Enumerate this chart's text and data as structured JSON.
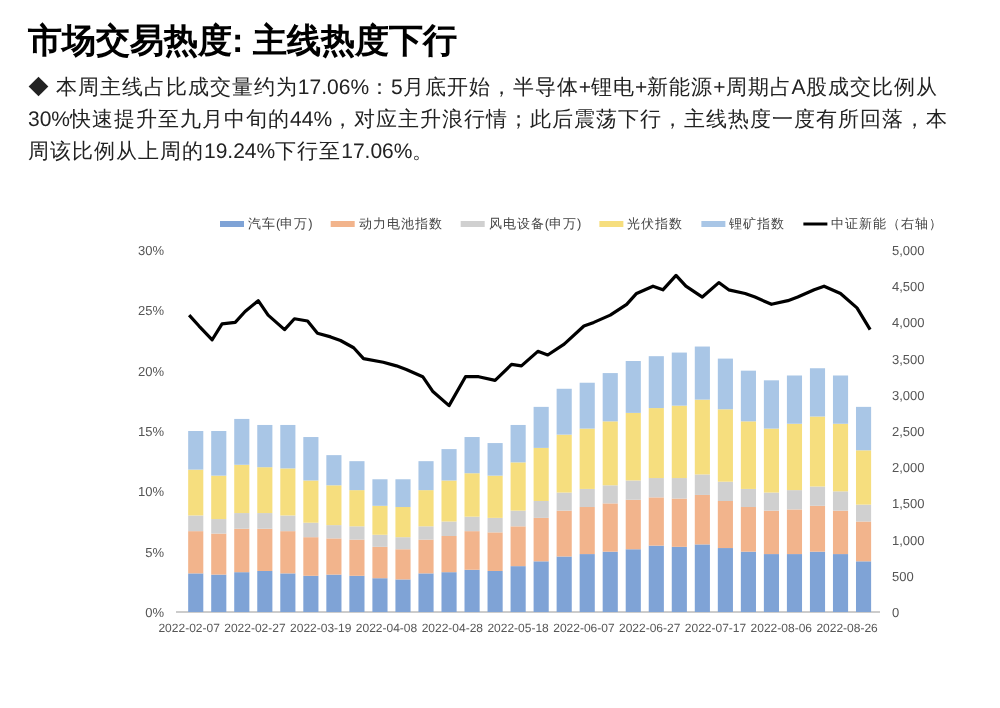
{
  "chart_data": {
    "type": "bar",
    "stacked": true,
    "title": "市场交易热度: 主线热度下行",
    "subtitle": "◆ 本周主线占比成交量约为17.06%：5月底开始，半导体+锂电+新能源+周期占A股成交比例从30%快速提升至九月中旬的44%，对应主升浪行情；此后震荡下行，主线热度一度有所回落，本周该比例从上周的19.24%下行至17.06%。",
    "x": [
      "2022-02-09",
      "2022-02-16",
      "2022-02-23",
      "2022-03-02",
      "2022-03-09",
      "2022-03-16",
      "2022-03-23",
      "2022-03-30",
      "2022-04-06",
      "2022-04-13",
      "2022-04-20",
      "2022-04-27",
      "2022-05-04",
      "2022-05-11",
      "2022-05-18",
      "2022-05-25",
      "2022-06-01",
      "2022-06-08",
      "2022-06-15",
      "2022-06-22",
      "2022-06-29",
      "2022-07-06",
      "2022-07-13",
      "2022-07-20",
      "2022-07-27",
      "2022-08-03",
      "2022-08-10",
      "2022-08-17",
      "2022-08-24",
      "2022-08-31"
    ],
    "series": [
      {
        "name": "汽车(申万)",
        "color": "#7fa3d6",
        "values": [
          3.2,
          3.1,
          3.3,
          3.4,
          3.2,
          3.0,
          3.1,
          3.0,
          2.8,
          2.7,
          3.2,
          3.3,
          3.5,
          3.4,
          3.8,
          4.2,
          4.6,
          4.8,
          5.0,
          5.2,
          5.5,
          5.4,
          5.6,
          5.3,
          5.0,
          4.8,
          4.8,
          5.0,
          4.8,
          4.2
        ]
      },
      {
        "name": "动力电池指数",
        "color": "#f2b48c",
        "values": [
          3.5,
          3.4,
          3.6,
          3.5,
          3.5,
          3.2,
          3.0,
          3.0,
          2.6,
          2.5,
          2.8,
          3.0,
          3.2,
          3.2,
          3.3,
          3.6,
          3.8,
          3.9,
          4.0,
          4.1,
          4.0,
          4.0,
          4.1,
          3.9,
          3.7,
          3.6,
          3.7,
          3.8,
          3.6,
          3.3
        ]
      },
      {
        "name": "风电设备(申万)",
        "color": "#d0d0d0",
        "values": [
          1.3,
          1.2,
          1.3,
          1.3,
          1.3,
          1.2,
          1.1,
          1.1,
          1.0,
          1.0,
          1.1,
          1.2,
          1.2,
          1.2,
          1.3,
          1.4,
          1.5,
          1.5,
          1.5,
          1.6,
          1.6,
          1.7,
          1.7,
          1.6,
          1.5,
          1.5,
          1.6,
          1.6,
          1.6,
          1.4
        ]
      },
      {
        "name": "光伏指数",
        "color": "#f6de7e",
        "values": [
          3.8,
          3.6,
          4.0,
          3.8,
          3.9,
          3.5,
          3.3,
          3.0,
          2.4,
          2.5,
          3.0,
          3.4,
          3.6,
          3.5,
          4.0,
          4.4,
          4.8,
          5.0,
          5.3,
          5.6,
          5.8,
          6.0,
          6.2,
          6.0,
          5.6,
          5.3,
          5.5,
          5.8,
          5.6,
          4.5
        ]
      },
      {
        "name": "锂矿指数",
        "color": "#a9c6e6",
        "values": [
          3.2,
          3.7,
          3.8,
          3.5,
          3.6,
          3.6,
          2.5,
          2.4,
          2.2,
          2.3,
          2.4,
          2.6,
          3.0,
          2.7,
          3.1,
          3.4,
          3.8,
          3.8,
          4.0,
          4.3,
          4.3,
          4.4,
          4.4,
          4.2,
          4.2,
          4.0,
          4.0,
          4.0,
          4.0,
          3.6
        ]
      },
      {
        "name": "中证新能（右轴）",
        "type": "line",
        "axis": "y2",
        "color": "#000000",
        "x": [
          "2022-02-07",
          "2022-02-10",
          "2022-02-14",
          "2022-02-17",
          "2022-02-21",
          "2022-02-24",
          "2022-02-28",
          "2022-03-03",
          "2022-03-08",
          "2022-03-11",
          "2022-03-15",
          "2022-03-18",
          "2022-03-22",
          "2022-03-25",
          "2022-03-29",
          "2022-04-01",
          "2022-04-07",
          "2022-04-11",
          "2022-04-14",
          "2022-04-19",
          "2022-04-22",
          "2022-04-27",
          "2022-05-02",
          "2022-05-06",
          "2022-05-11",
          "2022-05-16",
          "2022-05-19",
          "2022-05-24",
          "2022-05-27",
          "2022-06-01",
          "2022-06-07",
          "2022-06-10",
          "2022-06-15",
          "2022-06-20",
          "2022-06-23",
          "2022-06-28",
          "2022-07-01",
          "2022-07-05",
          "2022-07-08",
          "2022-07-13",
          "2022-07-18",
          "2022-07-21",
          "2022-07-26",
          "2022-07-29",
          "2022-08-03",
          "2022-08-08",
          "2022-08-11",
          "2022-08-16",
          "2022-08-19",
          "2022-08-24",
          "2022-08-29",
          "2022-09-02"
        ],
        "values": [
          4100,
          3950,
          3760,
          3980,
          4000,
          4150,
          4300,
          4100,
          3900,
          4050,
          4020,
          3850,
          3800,
          3750,
          3650,
          3500,
          3450,
          3400,
          3350,
          3250,
          3050,
          2850,
          3250,
          3250,
          3200,
          3420,
          3400,
          3600,
          3550,
          3700,
          3950,
          4000,
          4100,
          4250,
          4400,
          4500,
          4450,
          4650,
          4500,
          4350,
          4550,
          4450,
          4400,
          4350,
          4250,
          4300,
          4350,
          4450,
          4500,
          4400,
          4200,
          3900
        ]
      }
    ],
    "ylim": [
      0,
      30
    ],
    "yticks": [
      {
        "value": 0,
        "label": "0%"
      },
      {
        "value": 5,
        "label": "5%"
      },
      {
        "value": 10,
        "label": "10%"
      },
      {
        "value": 15,
        "label": "15%"
      },
      {
        "value": 20,
        "label": "20%"
      },
      {
        "value": 25,
        "label": "25%"
      },
      {
        "value": 30,
        "label": "30%"
      }
    ],
    "y2lim": [
      0,
      5000
    ],
    "y2ticks": [
      {
        "value": 0,
        "label": "0"
      },
      {
        "value": 500,
        "label": "500"
      },
      {
        "value": 1000,
        "label": "1,000"
      },
      {
        "value": 1500,
        "label": "1,500"
      },
      {
        "value": 2000,
        "label": "2,000"
      },
      {
        "value": 2500,
        "label": "2,500"
      },
      {
        "value": 3000,
        "label": "3,000"
      },
      {
        "value": 3500,
        "label": "3,500"
      },
      {
        "value": 4000,
        "label": "4,000"
      },
      {
        "value": 4500,
        "label": "4,500"
      },
      {
        "value": 5000,
        "label": "5,000"
      }
    ],
    "xlim": [
      "2022-02-03",
      "2022-09-05"
    ],
    "xticks": [
      "2022-02-07",
      "2022-02-27",
      "2022-03-19",
      "2022-04-08",
      "2022-04-28",
      "2022-05-18",
      "2022-06-07",
      "2022-06-27",
      "2022-07-17",
      "2022-08-06",
      "2022-08-26"
    ],
    "legend": "top",
    "grid": false
  }
}
